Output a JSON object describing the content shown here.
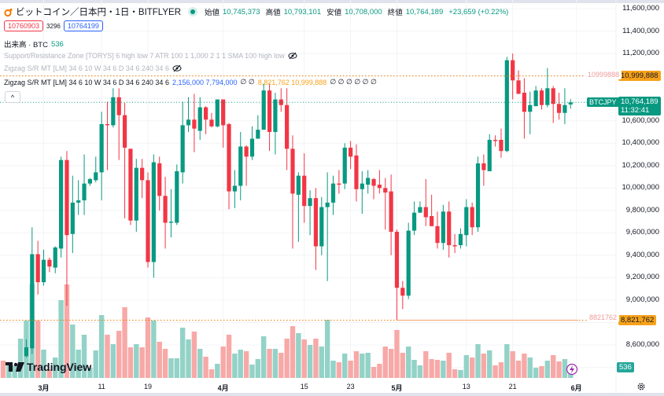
{
  "header": {
    "title": "ビットコイン／日本円・1日・BITFLYER",
    "ohlc": [
      {
        "label": "始値",
        "value": "10,745,373"
      },
      {
        "label": "高値",
        "value": "10,793,101"
      },
      {
        "label": "安値",
        "value": "10,708,000"
      },
      {
        "label": "終値",
        "value": "10,764,189"
      }
    ],
    "change": "+23,659 (+0.22%)",
    "bid": "10760903",
    "spread": "3296",
    "ask": "10764199"
  },
  "indicators": {
    "volume": {
      "label": "出来高 · BTC",
      "value": "536"
    },
    "sr_zone": "Support/Resistance Zone [TORYS] 6 high low 7 ATR 100 1 1,000 2 1 1 SMA 100 high low",
    "zigzag_hidden": "Zigzag S/R MT [LM] 34 6 10 W 34 6 D 34 6 240 34 6",
    "zigzag": {
      "label": "Zigzag S/R MT [LM] 34 6 10 W 34 6 D 34 6 240 34 6",
      "blue_values": "2,156,000 7,794,000",
      "empty1": "∅ ∅",
      "orange_values": "8,821,762 10,999,888",
      "empty2": "∅ ∅ ∅ ∅ ∅ ∅"
    },
    "collapse_label": "^"
  },
  "price_axis": {
    "labels": [
      "11,600,000",
      "11,400,000",
      "11,200,000",
      "10,600,000",
      "10,400,000",
      "10,200,000",
      "10,000,000",
      "9,800,000",
      "9,600,000",
      "9,400,000",
      "9,200,000",
      "9,000,000",
      "8,600,000"
    ],
    "resistance_tag": "10,999,888",
    "resistance_line_label": "10999888",
    "support_tag": "8,821,762",
    "support_line_label": "8821762",
    "symbol_tag": "BTCJPY",
    "last_price": "10,764,189",
    "countdown": "11:32:41",
    "volume_tag": "536"
  },
  "branding": {
    "logo_text": "TradingView"
  },
  "colors": {
    "up": "#089981",
    "down": "#f23645",
    "up_volume": "#93d2c7",
    "down_volume": "#f7a9a7",
    "resistance": "#f57c00",
    "support": "#f57c00",
    "accent_tag": "#f7a21b"
  },
  "chart_data": {
    "type": "candlestick",
    "ylim": [
      8300000,
      11700000
    ],
    "resistance": 10999888,
    "support": 8821762,
    "last": 10764189,
    "x_ticks": [
      {
        "date": "3/1",
        "label": "3月"
      },
      {
        "date": "3/11",
        "label": "11"
      },
      {
        "date": "3/19",
        "label": "19"
      },
      {
        "date": "4/1",
        "label": "4月"
      },
      {
        "date": "4/15",
        "label": "15"
      },
      {
        "date": "4/23",
        "label": "23"
      },
      {
        "date": "5/1",
        "label": "5月"
      },
      {
        "date": "5/13",
        "label": "13"
      },
      {
        "date": "5/21",
        "label": "21"
      },
      {
        "date": "6/1",
        "label": "6月"
      }
    ],
    "offscreen_bars": [
      {
        "date": "2/23",
        "volume": 880,
        "up": false
      },
      {
        "date": "2/24",
        "volume": 640,
        "up": true
      },
      {
        "date": "2/25",
        "volume": 640,
        "up": true
      },
      {
        "date": "2/26",
        "volume": 2000,
        "up": true
      }
    ],
    "columns": [
      "date",
      "open",
      "high",
      "low",
      "close",
      "volume"
    ],
    "candles": [
      [
        "2/27",
        8500000,
        8650000,
        8490000,
        8580000,
        2920
      ],
      [
        "2/28",
        8570000,
        9650000,
        8520000,
        9410000,
        4760
      ],
      [
        "2/29",
        9410000,
        9530000,
        9050000,
        9160000,
        2920
      ],
      [
        "3/1",
        9160000,
        9450000,
        9130000,
        9360000,
        1440
      ],
      [
        "3/2",
        9360000,
        9380000,
        9250000,
        9300000,
        440
      ],
      [
        "3/3",
        9290000,
        9480000,
        9240000,
        9470000,
        1040
      ],
      [
        "3/4",
        9460000,
        10280000,
        9380000,
        10250000,
        3960
      ],
      [
        "3/5",
        10250000,
        10330000,
        8950000,
        9580000,
        4760
      ],
      [
        "3/6",
        9590000,
        10110000,
        9420000,
        9870000,
        2720
      ],
      [
        "3/7",
        9870000,
        10070000,
        9760000,
        9890000,
        1440
      ],
      [
        "3/8",
        9890000,
        10300000,
        9760000,
        10040000,
        2200
      ],
      [
        "3/9",
        10040000,
        10090000,
        10020000,
        10080000,
        520
      ],
      [
        "3/10",
        10070000,
        10280000,
        10050000,
        10140000,
        1400
      ],
      [
        "3/11",
        10140000,
        10680000,
        9890000,
        10570000,
        3200
      ],
      [
        "3/12",
        10570000,
        10770000,
        10160000,
        10560000,
        2200
      ],
      [
        "3/13",
        10560000,
        10890000,
        10540000,
        10810000,
        1720
      ],
      [
        "3/14",
        10810000,
        10890000,
        10250000,
        10650000,
        2400
      ],
      [
        "3/15",
        10650000,
        10760000,
        9730000,
        10360000,
        3600
      ],
      [
        "3/16",
        10350000,
        10350000,
        9670000,
        9710000,
        1560
      ],
      [
        "3/17",
        9710000,
        10260000,
        9610000,
        10180000,
        1720
      ],
      [
        "3/18",
        10180000,
        10260000,
        9910000,
        10070000,
        1560
      ],
      [
        "3/19",
        10070000,
        10140000,
        9290000,
        9340000,
        3080
      ],
      [
        "3/20",
        9340000,
        10300000,
        9200000,
        10230000,
        2920
      ],
      [
        "3/21",
        10220000,
        10280000,
        9800000,
        9930000,
        1840
      ],
      [
        "3/22",
        9930000,
        10100000,
        9460000,
        9690000,
        1480
      ],
      [
        "3/23",
        9690000,
        9990000,
        9560000,
        9700000,
        1000
      ],
      [
        "3/24",
        9690000,
        10210000,
        9670000,
        10150000,
        1000
      ],
      [
        "3/25",
        10140000,
        10770000,
        10040000,
        10560000,
        2560
      ],
      [
        "3/26",
        10560000,
        10810000,
        10500000,
        10610000,
        1960
      ],
      [
        "3/27",
        10610000,
        10840000,
        10320000,
        10530000,
        2360
      ],
      [
        "3/28",
        10510000,
        10810000,
        10430000,
        10720000,
        1480
      ],
      [
        "3/29",
        10720000,
        10730000,
        10480000,
        10610000,
        1080
      ],
      [
        "3/30",
        10610000,
        10670000,
        10540000,
        10550000,
        440
      ],
      [
        "3/31",
        10550000,
        10790000,
        10540000,
        10790000,
        720
      ],
      [
        "4/1",
        10790000,
        10790000,
        10360000,
        10560000,
        1600
      ],
      [
        "4/2",
        10570000,
        10580000,
        9810000,
        9970000,
        2200
      ],
      [
        "4/3",
        9970000,
        10160000,
        9820000,
        10020000,
        1240
      ],
      [
        "4/4",
        10020000,
        10500000,
        9890000,
        10370000,
        1440
      ],
      [
        "4/5",
        10370000,
        10380000,
        10020000,
        10280000,
        1360
      ],
      [
        "4/6",
        10280000,
        10550000,
        10250000,
        10440000,
        680
      ],
      [
        "4/7",
        10440000,
        10650000,
        10440000,
        10520000,
        960
      ],
      [
        "4/8",
        10520000,
        10930000,
        10520000,
        10870000,
        2120
      ],
      [
        "4/9",
        10870000,
        10930000,
        10330000,
        10500000,
        1480
      ],
      [
        "4/10",
        10500000,
        10850000,
        10300000,
        10790000,
        1480
      ],
      [
        "4/11",
        10790000,
        10890000,
        10680000,
        10740000,
        1280
      ],
      [
        "4/12",
        10740000,
        10890000,
        10160000,
        10350000,
        2000
      ],
      [
        "4/13",
        10350000,
        10470000,
        9460000,
        9950000,
        2640
      ],
      [
        "4/14",
        9940000,
        10140000,
        9520000,
        10110000,
        2280
      ],
      [
        "4/15",
        10110000,
        10310000,
        9690000,
        9840000,
        1960
      ],
      [
        "4/16",
        9840000,
        9980000,
        9580000,
        9910000,
        1680
      ],
      [
        "4/17",
        9910000,
        10000000,
        9270000,
        9480000,
        2000
      ],
      [
        "4/18",
        9480000,
        9920000,
        9400000,
        9830000,
        1600
      ],
      [
        "4/19",
        9830000,
        10140000,
        9170000,
        9870000,
        2960
      ],
      [
        "4/20",
        9870000,
        10110000,
        9760000,
        10040000,
        880
      ],
      [
        "4/21",
        10040000,
        10160000,
        9950000,
        10030000,
        800
      ],
      [
        "4/22",
        10040000,
        10400000,
        9990000,
        10360000,
        1240
      ],
      [
        "4/23",
        10360000,
        10420000,
        10170000,
        10280000,
        880
      ],
      [
        "4/24",
        10290000,
        10390000,
        9880000,
        9990000,
        1360
      ],
      [
        "4/25",
        9990000,
        10150000,
        9770000,
        10040000,
        1240
      ],
      [
        "4/26",
        10030000,
        10160000,
        9950000,
        10090000,
        1280
      ],
      [
        "4/27",
        10080000,
        10090000,
        9900000,
        10020000,
        560
      ],
      [
        "4/28",
        10030000,
        10160000,
        9950000,
        10000000,
        720
      ],
      [
        "4/29",
        10000000,
        10090000,
        9630000,
        9960000,
        1600
      ],
      [
        "4/30",
        9970000,
        10120000,
        9400000,
        9610000,
        1480
      ],
      [
        "5/1",
        9610000,
        9630000,
        8820000,
        9110000,
        2440
      ],
      [
        "5/2",
        9110000,
        9170000,
        8920000,
        9040000,
        1280
      ],
      [
        "5/3",
        9040000,
        9690000,
        9010000,
        9620000,
        1600
      ],
      [
        "5/4",
        9620000,
        9880000,
        9580000,
        9780000,
        920
      ],
      [
        "5/5",
        9780000,
        9880000,
        9780000,
        9830000,
        640
      ],
      [
        "5/6",
        9830000,
        10080000,
        9660000,
        9740000,
        1360
      ],
      [
        "5/7",
        9750000,
        9940000,
        9660000,
        9660000,
        960
      ],
      [
        "5/8",
        9660000,
        9790000,
        9460000,
        9510000,
        920
      ],
      [
        "5/9",
        9510000,
        9850000,
        9450000,
        9790000,
        880
      ],
      [
        "5/10",
        9790000,
        9880000,
        9380000,
        9490000,
        1280
      ],
      [
        "5/11",
        9490000,
        9590000,
        9420000,
        9480000,
        440
      ],
      [
        "5/12",
        9490000,
        9640000,
        9460000,
        9590000,
        400
      ],
      [
        "5/13",
        9580000,
        9900000,
        9480000,
        9830000,
        1160
      ],
      [
        "5/14",
        9830000,
        9870000,
        9580000,
        9650000,
        1040
      ],
      [
        "5/15",
        9650000,
        10280000,
        9610000,
        10220000,
        1720
      ],
      [
        "5/16",
        10220000,
        10300000,
        10020000,
        10160000,
        1240
      ],
      [
        "5/17",
        10150000,
        10480000,
        10150000,
        10430000,
        1400
      ],
      [
        "5/18",
        10430000,
        10470000,
        10370000,
        10420000,
        640
      ],
      [
        "5/19",
        10430000,
        10530000,
        10270000,
        10330000,
        800
      ],
      [
        "5/20",
        10330000,
        11170000,
        10320000,
        11140000,
        1720
      ],
      [
        "5/21",
        11140000,
        11200000,
        10790000,
        10960000,
        1360
      ],
      [
        "5/22",
        10960000,
        11050000,
        10840000,
        10840000,
        880
      ],
      [
        "5/23",
        10850000,
        10980000,
        10440000,
        10680000,
        1240
      ],
      [
        "5/24",
        10680000,
        10860000,
        10480000,
        10740000,
        1040
      ],
      [
        "5/25",
        10730000,
        10910000,
        10730000,
        10870000,
        520
      ],
      [
        "5/26",
        10870000,
        10890000,
        10700000,
        10740000,
        600
      ],
      [
        "5/27",
        10740000,
        11070000,
        10720000,
        10890000,
        880
      ],
      [
        "5/28",
        10890000,
        10910000,
        10580000,
        10750000,
        1160
      ],
      [
        "5/29",
        10750000,
        10850000,
        10610000,
        10670000,
        840
      ],
      [
        "5/30",
        10670000,
        10890000,
        10570000,
        10740000,
        960
      ],
      [
        "5/31",
        10745373,
        10793101,
        10708000,
        10764189,
        536
      ]
    ]
  }
}
